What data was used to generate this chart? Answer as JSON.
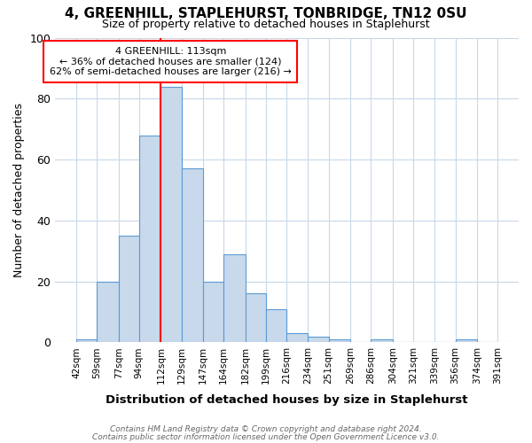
{
  "title1": "4, GREENHILL, STAPLEHURST, TONBRIDGE, TN12 0SU",
  "title2": "Size of property relative to detached houses in Staplehurst",
  "xlabel": "Distribution of detached houses by size in Staplehurst",
  "ylabel": "Number of detached properties",
  "footnote1": "Contains HM Land Registry data © Crown copyright and database right 2024.",
  "footnote2": "Contains public sector information licensed under the Open Government Licence v3.0.",
  "bin_edges": [
    42,
    59,
    77,
    94,
    112,
    129,
    147,
    164,
    182,
    199,
    216,
    234,
    251,
    269,
    286,
    304,
    321,
    339,
    356,
    374,
    391
  ],
  "bar_heights": [
    1,
    20,
    35,
    68,
    84,
    57,
    20,
    29,
    16,
    11,
    3,
    2,
    1,
    0,
    1,
    0,
    0,
    0,
    1,
    0
  ],
  "bar_color": "#c8d9eb",
  "bar_edge_color": "#5b9bd5",
  "bar_edge_width": 0.8,
  "grid_color": "#c8d8e8",
  "property_line_x": 112,
  "property_line_color": "red",
  "annotation_text": "4 GREENHILL: 113sqm\n← 36% of detached houses are smaller (124)\n62% of semi-detached houses are larger (216) →",
  "annotation_box_color": "white",
  "annotation_box_edge_color": "red",
  "ylim": [
    0,
    100
  ],
  "yticks": [
    0,
    20,
    40,
    60,
    80,
    100
  ],
  "background_color": "#ffffff",
  "title_fontsize": 11,
  "subtitle_fontsize": 9
}
